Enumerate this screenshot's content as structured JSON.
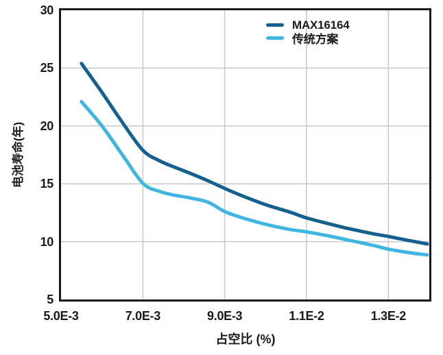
{
  "chart_data": {
    "type": "line",
    "title": "",
    "xlabel": "占空比 (%)",
    "ylabel": "电池寿命(年)",
    "grid": true,
    "legend_position": "top-right-inside",
    "colors": {
      "grid": "#c8c8c8",
      "axis": "#1a1a1a",
      "text": "#1a1a1a",
      "background": "#ffffff",
      "series_dark": "#15608f",
      "series_light": "#3fb6e0"
    },
    "x_axis": {
      "note": "x values expressed in units of 1E-3 duty cycle percent",
      "min_e3": 5.0,
      "max_e3": 14.0,
      "ticks": [
        {
          "label": "5.0E-3",
          "value_e3": 5.0
        },
        {
          "label": "7.0E-3",
          "value_e3": 7.0
        },
        {
          "label": "9.0E-3",
          "value_e3": 9.0
        },
        {
          "label": "1.1E-2",
          "value_e3": 11.0
        },
        {
          "label": "1.3E-2",
          "value_e3": 13.0
        }
      ]
    },
    "y_axis": {
      "min": 5,
      "max": 30,
      "ticks": [
        {
          "label": "5",
          "value": 5
        },
        {
          "label": "10",
          "value": 10
        },
        {
          "label": "15",
          "value": 15
        },
        {
          "label": "20",
          "value": 20
        },
        {
          "label": "25",
          "value": 25
        },
        {
          "label": "30",
          "value": 30
        }
      ]
    },
    "series": [
      {
        "name": "MAX16164",
        "color": "#15608f",
        "points_e3_years": [
          [
            5.5,
            25.4
          ],
          [
            6.0,
            22.9
          ],
          [
            6.5,
            20.3
          ],
          [
            7.0,
            17.9
          ],
          [
            7.4,
            17.0
          ],
          [
            7.8,
            16.4
          ],
          [
            8.2,
            15.85
          ],
          [
            8.6,
            15.25
          ],
          [
            9.0,
            14.6
          ],
          [
            9.4,
            14.0
          ],
          [
            10.0,
            13.2
          ],
          [
            10.6,
            12.55
          ],
          [
            11.0,
            12.05
          ],
          [
            11.6,
            11.5
          ],
          [
            12.0,
            11.15
          ],
          [
            12.6,
            10.7
          ],
          [
            13.0,
            10.45
          ],
          [
            13.5,
            10.1
          ],
          [
            13.95,
            9.8
          ]
        ]
      },
      {
        "name": "传统方案",
        "color": "#3fb6e0",
        "points_e3_years": [
          [
            5.5,
            22.1
          ],
          [
            6.0,
            20.0
          ],
          [
            6.5,
            17.5
          ],
          [
            7.0,
            15.05
          ],
          [
            7.4,
            14.35
          ],
          [
            7.8,
            14.0
          ],
          [
            8.2,
            13.75
          ],
          [
            8.6,
            13.4
          ],
          [
            9.0,
            12.6
          ],
          [
            9.4,
            12.1
          ],
          [
            10.0,
            11.5
          ],
          [
            10.6,
            11.05
          ],
          [
            11.0,
            10.85
          ],
          [
            11.6,
            10.45
          ],
          [
            12.0,
            10.15
          ],
          [
            12.6,
            9.7
          ],
          [
            13.0,
            9.35
          ],
          [
            13.5,
            9.05
          ],
          [
            13.95,
            8.85
          ]
        ]
      }
    ]
  }
}
